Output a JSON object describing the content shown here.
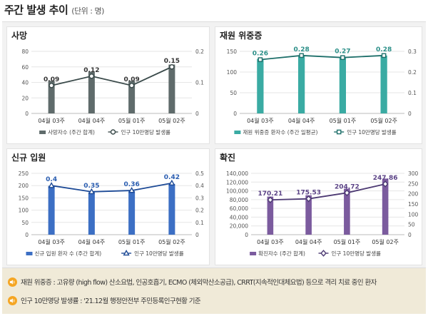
{
  "header": {
    "title": "주간 발생 추이",
    "unit": "(단위 : 명)"
  },
  "chart_data": [
    {
      "type": "bar+line",
      "title": "사망",
      "categories": [
        "04월 03주",
        "04월 04주",
        "05월 01주",
        "05월 02주"
      ],
      "bar": {
        "name": "사망자수 (주간 합계)",
        "values": [
          42,
          54,
          42,
          63
        ],
        "color": "#5f6b6b",
        "ylim": [
          0,
          80
        ],
        "ticks": [
          0,
          20,
          40,
          60,
          80
        ]
      },
      "line": {
        "name": "인구 10만명당 발생률",
        "values": [
          0.09,
          0.12,
          0.09,
          0.15
        ],
        "labels": [
          "0.09",
          "0.12",
          "0.09",
          "0.15"
        ],
        "color": "#3a4a4a",
        "ylim": [
          0,
          0.2
        ],
        "ticks": [
          "0",
          "0.1",
          "0.2"
        ],
        "marker": "circle"
      },
      "label_color": "#333333"
    },
    {
      "type": "bar+line",
      "title": "재원 위중증",
      "categories": [
        "04월 03주",
        "04월 04주",
        "05월 01주",
        "05월 02주"
      ],
      "bar": {
        "name": "재원 위중증 환자수 (주간 일평균)",
        "values": [
          132,
          140,
          137,
          140
        ],
        "color": "#3aaba3",
        "ylim": [
          0,
          150
        ],
        "ticks": [
          0,
          50,
          100,
          150
        ]
      },
      "line": {
        "name": "인구 10만명당 발생률",
        "values": [
          0.26,
          0.28,
          0.27,
          0.28
        ],
        "labels": [
          "0.26",
          "0.28",
          "0.27",
          "0.28"
        ],
        "color": "#1e6f6a",
        "ylim": [
          0,
          0.3
        ],
        "ticks": [
          "0",
          "0.1",
          "0.2",
          "0.3"
        ],
        "marker": "square"
      },
      "label_color": "#2b8f88"
    },
    {
      "type": "bar+line",
      "title": "신규 입원",
      "categories": [
        "04월 03주",
        "04월 04주",
        "05월 01주",
        "05월 02주"
      ],
      "bar": {
        "name": "신규 입원 환자 수 (주간 합계)",
        "values": [
          199,
          173,
          178,
          207
        ],
        "color": "#3c6fc4",
        "ylim": [
          0,
          250
        ],
        "ticks": [
          0,
          50,
          100,
          150,
          200,
          250
        ]
      },
      "line": {
        "name": "인구 10만명당 발생률",
        "values": [
          0.4,
          0.35,
          0.36,
          0.42
        ],
        "labels": [
          "0.4",
          "0.35",
          "0.36",
          "0.42"
        ],
        "color": "#1d4a96",
        "ylim": [
          0,
          0.5
        ],
        "ticks": [
          "0",
          "0.1",
          "0.2",
          "0.3",
          "0.4",
          "0.5"
        ],
        "marker": "triangle"
      },
      "label_color": "#2a5db0"
    },
    {
      "type": "bar+line",
      "title": "확진",
      "categories": [
        "04월 03주",
        "04월 04주",
        "05월 01주",
        "05월 02주"
      ],
      "bar": {
        "name": "확진자수 (주간 합계)",
        "values": [
          87000,
          90000,
          105000,
          128000
        ],
        "color": "#7b5b9e",
        "ylim": [
          0,
          140000
        ],
        "ticks": [
          "0",
          "20,000",
          "40,000",
          "60,000",
          "80,000",
          "100,000",
          "120,000",
          "140,000"
        ]
      },
      "line": {
        "name": "인구 10만명당 발생률",
        "values": [
          170.21,
          175.53,
          204.72,
          247.86
        ],
        "labels": [
          "170.21",
          "175.53",
          "204.72",
          "247.86"
        ],
        "color": "#4d3a73",
        "ylim": [
          0,
          300
        ],
        "ticks": [
          "0",
          "50",
          "100",
          "150",
          "200",
          "250",
          "300"
        ],
        "marker": "diamond"
      },
      "label_color": "#5b4386"
    }
  ],
  "notes": [
    "재원 위중증 : 고유량 (high flow) 산소요법, 인공호흡기, ECMO (체외막산소공급), CRRT(지속적인대체요법) 등으로 격리 치료 중인 환자",
    "인구 10만명당 발생률 : '21.12월 행정안전부 주민등록인구현황 기준"
  ]
}
